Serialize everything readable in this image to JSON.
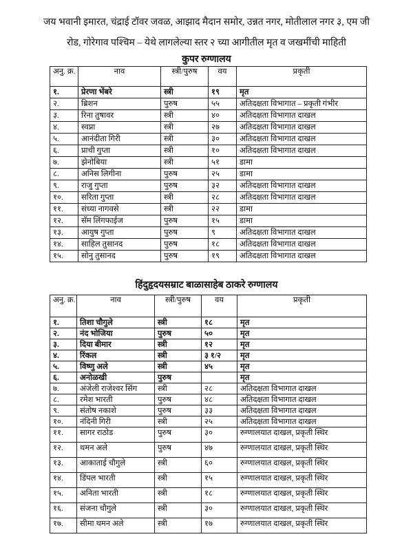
{
  "heading": {
    "line1": "जय भवानी इमारत, चंद्राई टॉवर जवळ, आझाद मैदान समोर, उन्नत नगर, मोतीलाल नगर ३, एम जी",
    "line2": "रोड, गोरेगाव पश्चिम – येथे लागलेल्या स्तर २ च्या आगीतील मृत व जखमींची माहिती"
  },
  "columns": {
    "sn": "अनु. क्र.",
    "name": "नाव",
    "gender": "स्त्री/पुरुष",
    "age": "वय",
    "condition": "प्रकृती"
  },
  "hospitals": [
    {
      "title": "कुपर रुग्णालय",
      "rows": [
        {
          "sn": "१.",
          "name": "प्रेरणा भेंबरे",
          "gender": "स्त्री",
          "age": "१९",
          "condition": "मृत",
          "bold": true
        },
        {
          "sn": "२.",
          "name": "ब्रिशन",
          "gender": "पुरुष",
          "age": "५५",
          "condition": "अतिदक्षता विभागात – प्रकृती गंभीर"
        },
        {
          "sn": "३.",
          "name": "रिना तुषावर",
          "gender": "स्त्री",
          "age": "४०",
          "condition": "अतिदक्षता विभागात दाखल"
        },
        {
          "sn": "४.",
          "name": "स्वप्ना",
          "gender": "स्त्री",
          "age": "२७",
          "condition": "अतिदक्षता विभागात दाखल"
        },
        {
          "sn": "५.",
          "name": "आनंदीता गिरी",
          "gender": "स्त्री",
          "age": "३०",
          "condition": "अतिदक्षता विभागात दाखल"
        },
        {
          "sn": "६.",
          "name": "प्राची गुप्ता",
          "gender": "स्त्री",
          "age": "१०",
          "condition": "अतिदक्षता विभागात दाखल"
        },
        {
          "sn": "७.",
          "name": "झेनोबिया",
          "gender": "स्त्री",
          "age": "५१",
          "condition": "डामा"
        },
        {
          "sn": "८.",
          "name": "अनिस लिगीना",
          "gender": "पुरुष",
          "age": "२५",
          "condition": "डामा"
        },
        {
          "sn": "९.",
          "name": "राजु गुप्ता",
          "gender": "पुरुष",
          "age": "३२",
          "condition": "अतिदक्षता विभागात दाखल"
        },
        {
          "sn": "१०.",
          "name": "सरिता गुप्ता",
          "gender": "स्त्री",
          "age": "२८",
          "condition": "अतिदक्षता विभागात दाखल"
        },
        {
          "sn": "११.",
          "name": "संध्या नागवसे",
          "gender": "स्त्री",
          "age": "२२",
          "condition": "डामा"
        },
        {
          "sn": "१२.",
          "name": "सॅम लिंगफाईज",
          "gender": "पुरुष",
          "age": "१५",
          "condition": "डामा"
        },
        {
          "sn": "१३.",
          "name": "आयुष गुप्ता",
          "gender": "पुरुष",
          "age": "९",
          "condition": "अतिदक्षता विभागात दाखल"
        },
        {
          "sn": "१४.",
          "name": "साहिल तुसानद",
          "gender": "पुरुष",
          "age": "१८",
          "condition": "अतिदक्षता विभागात दाखल"
        },
        {
          "sn": "१५.",
          "name": "सोनु तुसानद",
          "gender": "पुरुष",
          "age": "१९",
          "condition": "अतिदक्षता विभागात दाखल"
        }
      ]
    },
    {
      "title": "हिंदुहृदयसम्राट बाळासाहेब ठाकरे रुग्णालय",
      "rows": [
        {
          "sn": "१.",
          "name": "तिशा चौगुले",
          "gender": "स्त्री",
          "age": "१८",
          "condition": "मृत",
          "bold": true
        },
        {
          "sn": "२.",
          "name": "नंद भोजिया",
          "gender": "पुरुष",
          "age": "५०",
          "condition": "मृत",
          "bold": true
        },
        {
          "sn": "३.",
          "name": "दिया बीमार",
          "gender": "स्त्री",
          "age": "१२",
          "condition": "मृत",
          "bold": true
        },
        {
          "sn": "४.",
          "name": "रिंकल",
          "gender": "स्त्री",
          "age": "३ १/२",
          "condition": "मृत",
          "bold": true
        },
        {
          "sn": "५.",
          "name": "विष्णु अले",
          "gender": "स्त्री",
          "age": "४५",
          "condition": "मृत",
          "bold": true
        },
        {
          "sn": "६.",
          "name": "अनोळखी",
          "gender": "पुरुष",
          "age": "",
          "condition": "मृत",
          "bold": true
        },
        {
          "sn": "७.",
          "name": "अंजेली राजेश्वर सिंग",
          "gender": "स्त्री",
          "age": "२८",
          "condition": "अतिदक्षता विभागात दाखल"
        },
        {
          "sn": "८.",
          "name": "रमेश भारती",
          "gender": "पुरुष",
          "age": "४८",
          "condition": "अतिदक्षता विभागात दाखल"
        },
        {
          "sn": "९.",
          "name": "संतोष नकाशे",
          "gender": "पुरुष",
          "age": "३३",
          "condition": "अतिदक्षता विभागात दाखल"
        },
        {
          "sn": "१०.",
          "name": "नंदिनी गिरी",
          "gender": "स्त्री",
          "age": "२५",
          "condition": "अतिदक्षता विभागात दाखल"
        },
        {
          "sn": "११.",
          "name": "सागर राठोड",
          "gender": "पुरुष",
          "age": "३०",
          "condition": "रुग्णालयात दाखल, प्रकृती स्थिर"
        },
        {
          "sn": "१२.",
          "name": "थमन अले",
          "gender": "पुरुष",
          "age": "४७",
          "condition": "रुग्णालयात दाखल, प्रकृती स्थिर"
        },
        {
          "sn": "१३.",
          "name": "आकाताई चौगुले",
          "gender": "स्त्री",
          "age": "६०",
          "condition": "रुग्णालयात दाखल, प्रकृती स्थिर"
        },
        {
          "sn": "१४.",
          "name": "डिंपल भारती",
          "gender": "स्त्री",
          "age": "१५",
          "condition": "रुग्णालयात दाखल, प्रकृती स्थिर"
        },
        {
          "sn": "१५.",
          "name": "अनिता भारती",
          "gender": "स्त्री",
          "age": "१८",
          "condition": "रुग्णालयात दाखल, प्रकृती स्थिर"
        },
        {
          "sn": "१६.",
          "name": "संजना चौगुले",
          "gender": "स्त्री",
          "age": "३०",
          "condition": "रुग्णालयात दाखल, प्रकृती स्थिर"
        },
        {
          "sn": "१७.",
          "name": "सीमा थमन अले",
          "gender": "स्त्री",
          "age": "१७",
          "condition": "रुग्णालयात दाखल, प्रकृती स्थिर"
        }
      ]
    }
  ]
}
